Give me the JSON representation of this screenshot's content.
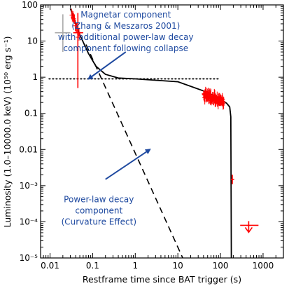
{
  "chart_data": {
    "type": "line",
    "title": "",
    "xlabel": "Restframe time since BAT trigger (s)",
    "ylabel": "Luminosity (1.0–10000.0 keV) (10⁵⁰ erg s⁻¹)",
    "x_scale": "log",
    "y_scale": "log",
    "xlim": [
      0.006,
      3000
    ],
    "ylim": [
      1e-05,
      100
    ],
    "grid": false,
    "x_ticks": [
      {
        "value": 0.01,
        "label": "0.01"
      },
      {
        "value": 0.1,
        "label": "0.1"
      },
      {
        "value": 1,
        "label": "1"
      },
      {
        "value": 10,
        "label": "10"
      },
      {
        "value": 100,
        "label": "100"
      },
      {
        "value": 1000,
        "label": "1000"
      }
    ],
    "y_ticks": [
      {
        "value": 1e-05,
        "label": "10⁻⁵"
      },
      {
        "value": 0.0001,
        "label": "10⁻⁴"
      },
      {
        "value": 0.001,
        "label": "10⁻³"
      },
      {
        "value": 0.01,
        "label": "0.01"
      },
      {
        "value": 0.1,
        "label": "0.1"
      },
      {
        "value": 1,
        "label": "1"
      },
      {
        "value": 10,
        "label": "10"
      },
      {
        "value": 100,
        "label": "100"
      }
    ],
    "series": [
      {
        "style": "solid",
        "color": "#000000",
        "x": [
          0.03,
          0.05,
          0.08,
          0.12,
          0.2,
          0.4,
          1,
          10,
          50,
          100,
          140,
          165,
          175,
          180
        ],
        "y": [
          80,
          15,
          4.5,
          2,
          1.2,
          0.95,
          0.9,
          0.75,
          0.38,
          0.25,
          0.19,
          0.15,
          0.08,
          1e-05
        ]
      },
      {
        "style": "dotted",
        "color": "#000000",
        "x": [
          0.0095,
          100
        ],
        "y": [
          0.9,
          0.9
        ]
      },
      {
        "style": "dashed",
        "color": "#000000",
        "x": [
          0.07,
          13
        ],
        "y": [
          8,
          1e-05
        ]
      }
    ],
    "error_bars": [
      {
        "color": "#aaaaaa",
        "x": 0.02,
        "y": 17,
        "x_err": [
          0.013,
          0.03
        ],
        "y_err": [
          5,
          55
        ]
      },
      {
        "color": "#ff0000",
        "x": 0.045,
        "y": 17,
        "x_err": [
          0.035,
          0.06
        ],
        "y_err": [
          0.5,
          60
        ]
      },
      {
        "color": "#ff0000",
        "x": 190,
        "y": 0.0015,
        "x_err": [
          175,
          210
        ],
        "y_err": [
          0.0011,
          0.002
        ]
      },
      {
        "color": "#ff0000",
        "x": 460,
        "y": 8e-05,
        "x_err": [
          290,
          780
        ],
        "upper_limit": true
      }
    ],
    "noisy_clusters": [
      {
        "color": "#ff0000",
        "x_range": [
          0.032,
          0.05
        ],
        "y_from": 60,
        "y_to": 12,
        "count": 12,
        "seed": 3
      },
      {
        "color": "#ff0000",
        "x_range": [
          40,
          120
        ],
        "y_from": 0.34,
        "y_to": 0.2,
        "count": 80,
        "seed": 7
      }
    ],
    "annotations": [
      {
        "text_lines": [
          "Magnetar component",
          "(Zhang & Meszaros 2001)",
          "with additional power-law decay",
          "component following collapse"
        ],
        "color": "#1f4aa0",
        "text_x": 0.6,
        "text_y": 45,
        "arrow_from": [
          0.6,
          5
        ],
        "arrow_to": [
          0.08,
          0.9
        ]
      },
      {
        "text_lines": [
          "Power-law decay",
          "component",
          "(Curvature Effect)"
        ],
        "color": "#1f4aa0",
        "text_x": 0.14,
        "text_y": 0.00035,
        "arrow_from": [
          0.2,
          0.0015
        ],
        "arrow_to": [
          2.2,
          0.01
        ]
      }
    ]
  }
}
